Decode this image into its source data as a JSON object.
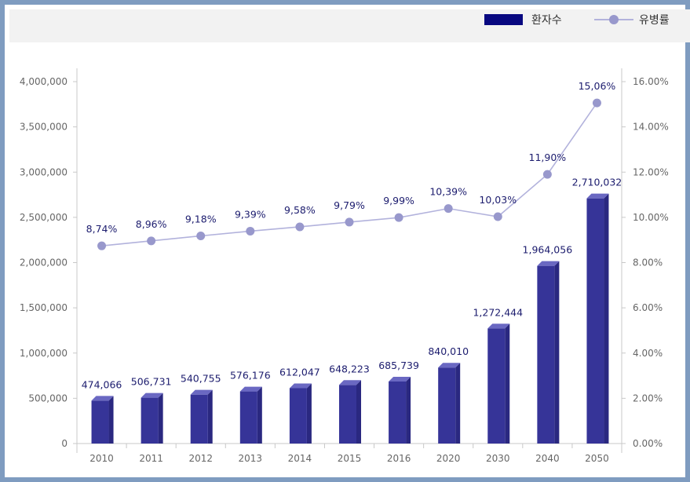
{
  "legend": {
    "bar_label": "환자수",
    "line_label": "유병률"
  },
  "colors": {
    "bar_front": "#363498",
    "bar_side": "#2a2880",
    "bar_top": "#6a68c2",
    "line": "#b2b2dc",
    "point": "#9898cc",
    "legend_bar": "#080880",
    "frame": "#7f9cc0"
  },
  "chart_data": {
    "type": "bar",
    "categories": [
      "2010",
      "2011",
      "2012",
      "2013",
      "2014",
      "2015",
      "2016",
      "2020",
      "2030",
      "2040",
      "2050"
    ],
    "series": [
      {
        "name": "환자수",
        "type": "bar",
        "axis": "left",
        "values": [
          474066,
          506731,
          540755,
          576176,
          612047,
          648223,
          685739,
          840010,
          1272444,
          1964056,
          2710032
        ],
        "labels": [
          "474,066",
          "506,731",
          "540,755",
          "576,176",
          "612,047",
          "648,223",
          "685,739",
          "840,010",
          "1,272,444",
          "1,964,056",
          "2,710,032"
        ]
      },
      {
        "name": "유병률",
        "type": "line",
        "axis": "right",
        "values": [
          8.74,
          8.96,
          9.18,
          9.39,
          9.58,
          9.79,
          9.99,
          10.39,
          10.03,
          11.9,
          15.06
        ],
        "labels": [
          "8,74%",
          "8,96%",
          "9,18%",
          "9,39%",
          "9,58%",
          "9,79%",
          "9,99%",
          "10,39%",
          "10,03%",
          "11,90%",
          "15,06%"
        ]
      }
    ],
    "y_left": {
      "ylim": [
        0,
        4000000
      ],
      "ticks": [
        0,
        500000,
        1000000,
        1500000,
        2000000,
        2500000,
        3000000,
        3500000,
        4000000
      ],
      "tick_labels": [
        "0",
        "500,000",
        "1,000,000",
        "1,500,000",
        "2,000,000",
        "2,500,000",
        "3,000,000",
        "3,500,000",
        "4,000,000"
      ]
    },
    "y_right": {
      "ylim": [
        0,
        16
      ],
      "ticks": [
        0,
        2,
        4,
        6,
        8,
        10,
        12,
        14,
        16
      ],
      "tick_labels": [
        "0.00%",
        "2.00%",
        "4.00%",
        "6.00%",
        "8.00%",
        "10.00%",
        "12.00%",
        "14.00%",
        "16.00%"
      ]
    },
    "grid": false,
    "legend_position": "top-right",
    "title": "",
    "xlabel": "",
    "ylabel": ""
  }
}
